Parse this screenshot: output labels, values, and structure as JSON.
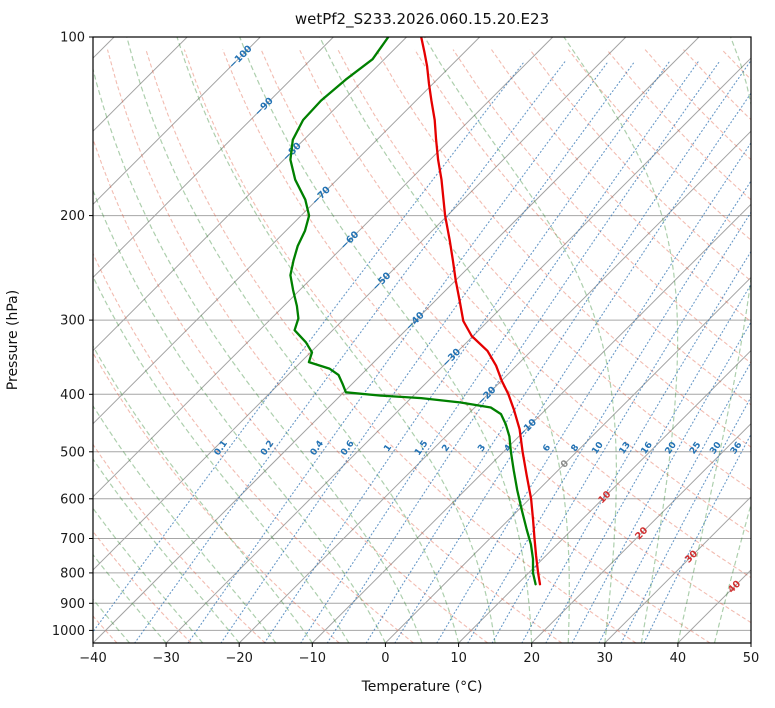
{
  "title": "wetPf2_S233.2026.060.15.20.E23",
  "axes": {
    "xlabel": "Temperature (°C)",
    "ylabel": "Pressure (hPa)",
    "x_ticks": [
      {
        "v": -40,
        "label": "−40"
      },
      {
        "v": -30,
        "label": "−30"
      },
      {
        "v": -20,
        "label": "−20"
      },
      {
        "v": -10,
        "label": "−10"
      },
      {
        "v": 0,
        "label": "0"
      },
      {
        "v": 10,
        "label": "10"
      },
      {
        "v": 20,
        "label": "20"
      },
      {
        "v": 30,
        "label": "30"
      },
      {
        "v": 40,
        "label": "40"
      },
      {
        "v": 50,
        "label": "50"
      }
    ],
    "y_ticks": [
      {
        "v": 100,
        "label": "100"
      },
      {
        "v": 200,
        "label": "200"
      },
      {
        "v": 300,
        "label": "300"
      },
      {
        "v": 400,
        "label": "400"
      },
      {
        "v": 500,
        "label": "500"
      },
      {
        "v": 600,
        "label": "600"
      },
      {
        "v": 700,
        "label": "700"
      },
      {
        "v": 800,
        "label": "800"
      },
      {
        "v": 900,
        "label": "900"
      },
      {
        "v": 1000,
        "label": "1000"
      }
    ]
  },
  "chart_data": {
    "type": "line",
    "variant": "skew-t-log-p",
    "title": "wetPf2_S233.2026.060.15.20.E23",
    "xlabel": "Temperature (°C)",
    "ylabel": "Pressure (hPa)",
    "x_range_degC": [
      -40,
      50
    ],
    "pressure_range_hPa": [
      100,
      1050
    ],
    "skew": "45deg-isotherms",
    "grid": true,
    "series": [
      {
        "name": "temperature",
        "color": "#e50000",
        "units": [
          "hPa",
          "degC"
        ],
        "points": [
          [
            100,
            -78.0
          ],
          [
            106,
            -75.5
          ],
          [
            112,
            -73.2
          ],
          [
            120,
            -70.5
          ],
          [
            128,
            -67.9
          ],
          [
            138,
            -64.8
          ],
          [
            149,
            -61.9
          ],
          [
            161,
            -58.9
          ],
          [
            174,
            -55.7
          ],
          [
            188,
            -52.7
          ],
          [
            200,
            -50.3
          ],
          [
            220,
            -46.3
          ],
          [
            238,
            -43.1
          ],
          [
            257,
            -40.0
          ],
          [
            278,
            -36.7
          ],
          [
            301,
            -33.4
          ],
          [
            319,
            -30.2
          ],
          [
            338,
            -26.0
          ],
          [
            358,
            -22.8
          ],
          [
            380,
            -19.9
          ],
          [
            400,
            -17.2
          ],
          [
            425,
            -14.3
          ],
          [
            458,
            -10.9
          ],
          [
            500,
            -7.4
          ],
          [
            548,
            -3.6
          ],
          [
            600,
            0.2
          ],
          [
            652,
            3.4
          ],
          [
            700,
            6.1
          ],
          [
            749,
            8.7
          ],
          [
            800,
            11.3
          ],
          [
            836,
            13.1
          ]
        ]
      },
      {
        "name": "dewpoint",
        "color": "#008000",
        "units": [
          "hPa",
          "degC"
        ],
        "points": [
          [
            100,
            -82.5
          ],
          [
            109,
            -81.6
          ],
          [
            118,
            -82.5
          ],
          [
            128,
            -83.0
          ],
          [
            138,
            -82.8
          ],
          [
            149,
            -81.5
          ],
          [
            161,
            -79.1
          ],
          [
            174,
            -75.7
          ],
          [
            188,
            -71.6
          ],
          [
            200,
            -68.9
          ],
          [
            212,
            -67.4
          ],
          [
            225,
            -66.3
          ],
          [
            238,
            -64.9
          ],
          [
            252,
            -63.3
          ],
          [
            267,
            -60.9
          ],
          [
            284,
            -58.2
          ],
          [
            298,
            -56.3
          ],
          [
            312,
            -55.2
          ],
          [
            327,
            -52.0
          ],
          [
            340,
            -49.8
          ],
          [
            353,
            -48.9
          ],
          [
            362,
            -45.2
          ],
          [
            371,
            -43.1
          ],
          [
            385,
            -41.2
          ],
          [
            397,
            -39.7
          ],
          [
            402,
            -34.5
          ],
          [
            406,
            -28.6
          ],
          [
            413,
            -22.6
          ],
          [
            421,
            -17.8
          ],
          [
            432,
            -15.5
          ],
          [
            449,
            -13.5
          ],
          [
            471,
            -11.3
          ],
          [
            500,
            -9.0
          ],
          [
            537,
            -6.1
          ],
          [
            580,
            -2.9
          ],
          [
            626,
            0.4
          ],
          [
            676,
            3.8
          ],
          [
            716,
            6.4
          ],
          [
            758,
            8.7
          ],
          [
            800,
            10.6
          ],
          [
            836,
            12.5
          ]
        ]
      }
    ],
    "background_lines": {
      "isotherms_degC": {
        "from": -160,
        "to": 50,
        "step": 10,
        "color": "#a3a3a3"
      },
      "dry_adiabats_theta_degC": {
        "from": -40,
        "to": 190,
        "step": 10,
        "color": "rgba(222,80,50,0.38)"
      },
      "moist_adiabats_thetaw_degC": {
        "from": -40,
        "to": 45,
        "step": 5,
        "color": "rgba(40,130,40,0.38)"
      },
      "mixing_ratio_g_kg": [
        0.1,
        0.2,
        0.4,
        0.6,
        1,
        1.5,
        2,
        3,
        4,
        6,
        8,
        10,
        13,
        16,
        20,
        25,
        30,
        36
      ],
      "mixing_color": "rgba(52,118,180,0.75)",
      "mixing_label_color": "#2272b4",
      "mixing_label_pressure_hPa": 500
    },
    "isotherm_labels": [
      {
        "text": "−100",
        "t": -100,
        "p": 108,
        "color": "#2272b4"
      },
      {
        "text": "−90",
        "t": -90,
        "p": 131,
        "color": "#2272b4"
      },
      {
        "text": "−80",
        "t": -80,
        "p": 156,
        "color": "#2272b4"
      },
      {
        "text": "−70",
        "t": -70,
        "p": 185,
        "color": "#2272b4"
      },
      {
        "text": "−60",
        "t": -60,
        "p": 220,
        "color": "#2272b4"
      },
      {
        "text": "−50",
        "t": -50,
        "p": 258,
        "color": "#2272b4"
      },
      {
        "text": "−40",
        "t": -40,
        "p": 301,
        "color": "#2272b4"
      },
      {
        "text": "−30",
        "t": -30,
        "p": 347,
        "color": "#2272b4"
      },
      {
        "text": "−20",
        "t": -20,
        "p": 402,
        "color": "#2272b4"
      },
      {
        "text": "−10",
        "t": -10,
        "p": 456,
        "color": "#2272b4"
      },
      {
        "text": "0",
        "t": 0,
        "p": 524,
        "color": "#8c8c8c"
      },
      {
        "text": "10",
        "t": 10,
        "p": 596,
        "color": "#d03030"
      },
      {
        "text": "20",
        "t": 20,
        "p": 686,
        "color": "#d03030"
      },
      {
        "text": "30",
        "t": 30,
        "p": 751,
        "color": "#d03030"
      },
      {
        "text": "40",
        "t": 40,
        "p": 844,
        "color": "#d03030"
      }
    ]
  }
}
